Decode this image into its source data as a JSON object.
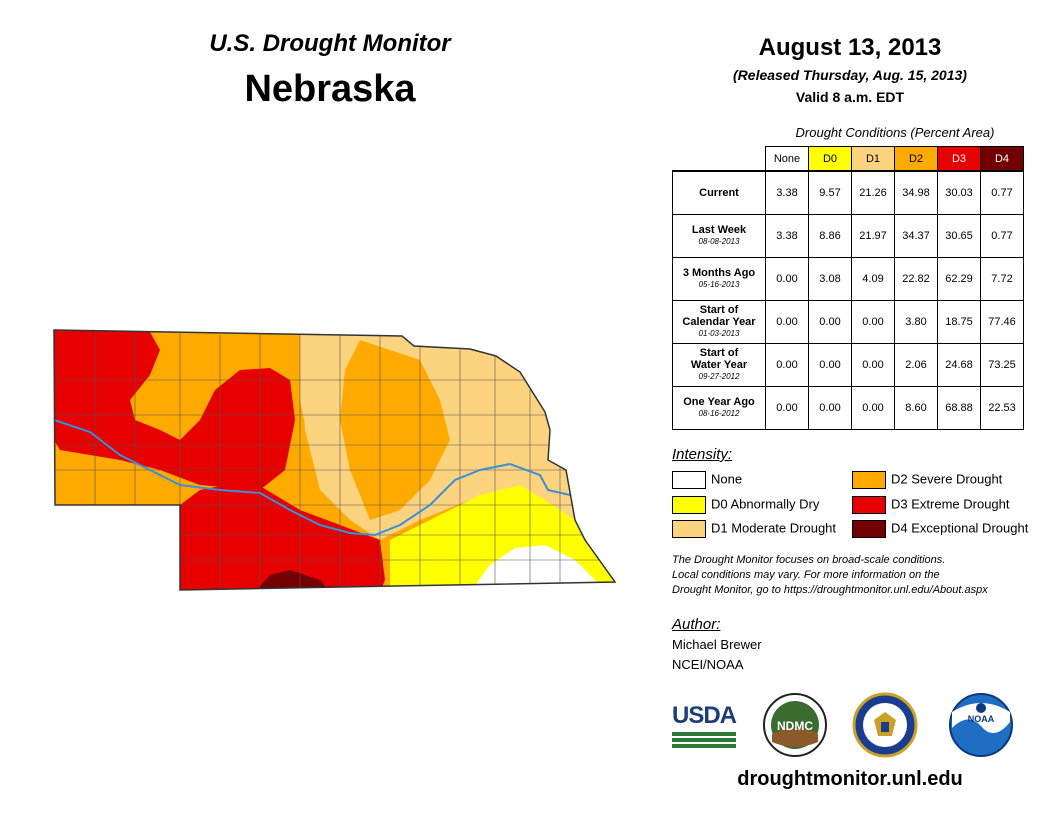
{
  "header": {
    "program": "U.S. Drought Monitor",
    "state": "Nebraska",
    "date": "August 13, 2013",
    "released": "(Released Thursday, Aug. 15, 2013)",
    "valid": "Valid 8 a.m. EDT"
  },
  "table": {
    "caption": "Drought Conditions (Percent Area)",
    "columns": [
      "None",
      "D0",
      "D1",
      "D2",
      "D3",
      "D4"
    ],
    "column_colors": [
      "#ffffff",
      "#ffff00",
      "#fcd37f",
      "#ffaa00",
      "#e60000",
      "#730000"
    ],
    "rows": [
      {
        "label": "Current",
        "sub": "",
        "values": [
          "3.38",
          "9.57",
          "21.26",
          "34.98",
          "30.03",
          "0.77"
        ]
      },
      {
        "label": "Last Week",
        "sub": "08-08-2013",
        "values": [
          "3.38",
          "8.86",
          "21.97",
          "34.37",
          "30.65",
          "0.77"
        ]
      },
      {
        "label": "3 Months Ago",
        "sub": "05-16-2013",
        "values": [
          "0.00",
          "3.08",
          "4.09",
          "22.82",
          "62.29",
          "7.72"
        ]
      },
      {
        "label": "Start of Calendar Year",
        "sub": "01-03-2013",
        "values": [
          "0.00",
          "0.00",
          "0.00",
          "3.80",
          "18.75",
          "77.46"
        ]
      },
      {
        "label": "Start of Water Year",
        "sub": "09-27-2012",
        "values": [
          "0.00",
          "0.00",
          "0.00",
          "2.06",
          "24.68",
          "73.25"
        ]
      },
      {
        "label": "One Year Ago",
        "sub": "08-16-2012",
        "values": [
          "0.00",
          "0.00",
          "0.00",
          "8.60",
          "68.88",
          "22.53"
        ]
      }
    ]
  },
  "legend": {
    "title": "Intensity:",
    "items": [
      {
        "label": "None",
        "color": "#ffffff"
      },
      {
        "label": "D0 Abnormally Dry",
        "color": "#ffff00"
      },
      {
        "label": "D1 Moderate Drought",
        "color": "#fcd37f"
      },
      {
        "label": "D2 Severe Drought",
        "color": "#ffaa00"
      },
      {
        "label": "D3 Extreme Drought",
        "color": "#e60000"
      },
      {
        "label": "D4 Exceptional Drought",
        "color": "#730000"
      }
    ]
  },
  "note": {
    "line1": "The Drought Monitor focuses on broad-scale conditions.",
    "line2": "Local conditions may vary. For more information on the",
    "line3": "Drought Monitor, go to https://droughtmonitor.unl.edu/About.aspx"
  },
  "author": {
    "title": "Author:",
    "name": "Michael Brewer",
    "org": "NCEI/NOAA"
  },
  "logos": {
    "usda": "USDA",
    "ndmc": "NDMC",
    "noaa": "NOAA"
  },
  "website": "droughtmonitor.unl.edu"
}
